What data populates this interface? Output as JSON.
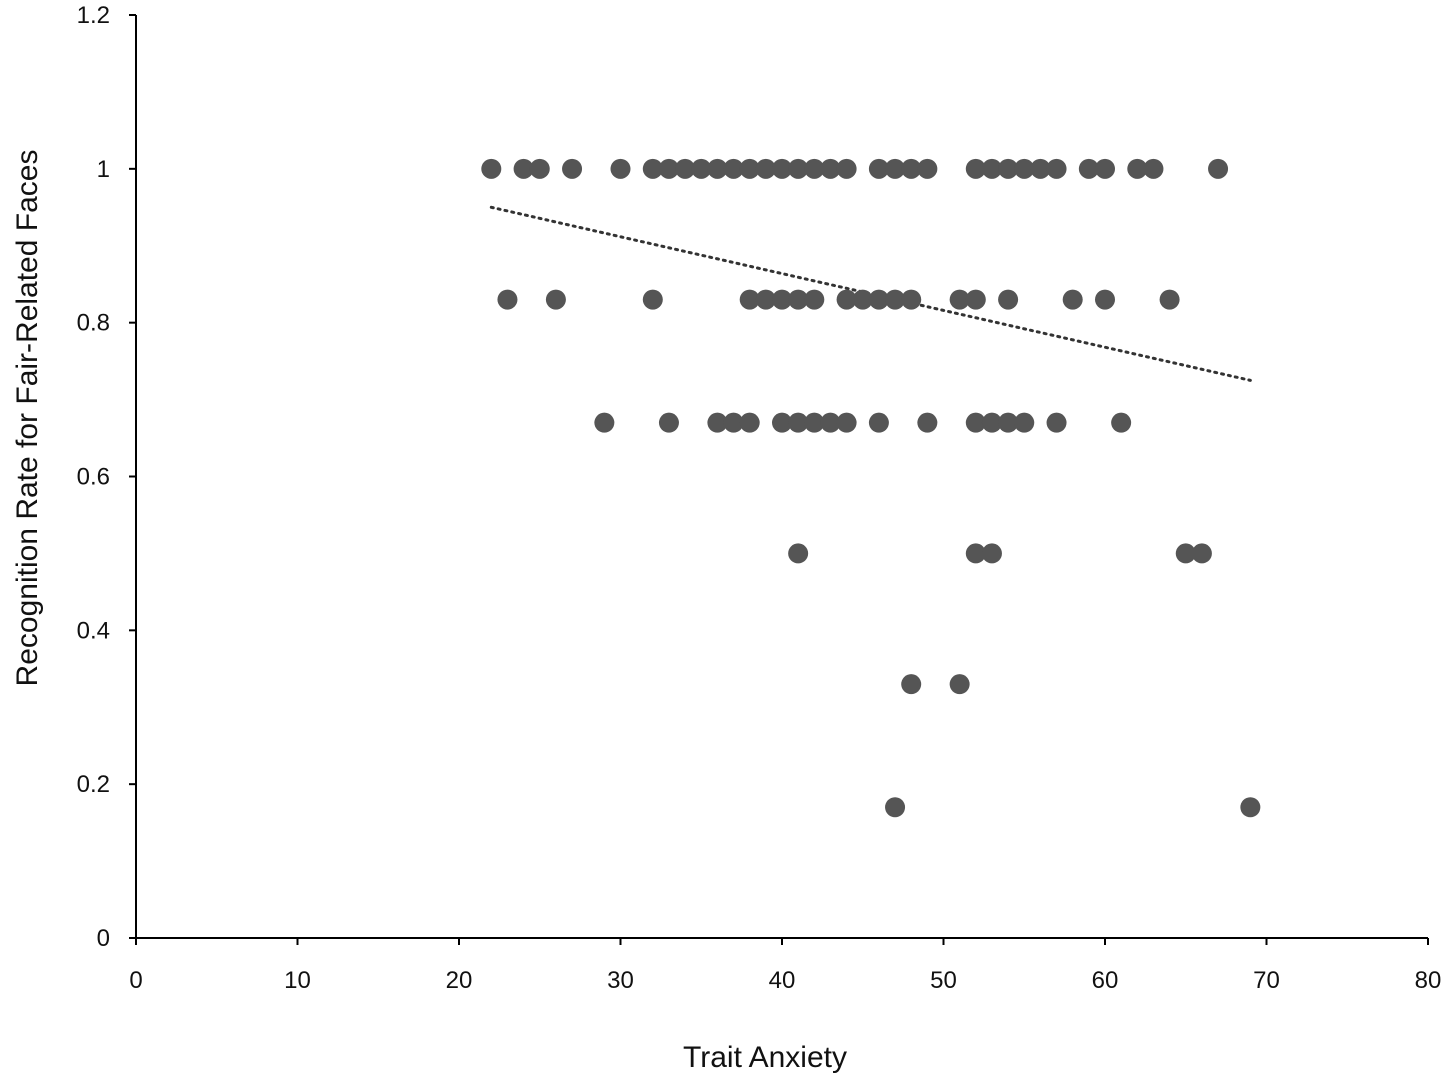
{
  "chart_data": {
    "type": "scatter",
    "title": "",
    "xlabel": "Trait Anxiety",
    "ylabel": "Recognition Rate for Fair-Related Faces",
    "xlim": [
      0,
      80
    ],
    "ylim": [
      0,
      1.2
    ],
    "x_ticks": [
      "0",
      "10",
      "20",
      "30",
      "40",
      "50",
      "60",
      "70",
      "80"
    ],
    "y_ticks": [
      "0",
      "0.2",
      "0.4",
      "0.6",
      "0.8",
      "1",
      "1.2"
    ],
    "grid": false,
    "legend": "none",
    "point_color": "#555555",
    "trendline": {
      "style": "dotted",
      "x": [
        22,
        69
      ],
      "y": [
        0.95,
        0.725
      ]
    },
    "points": [
      [
        22,
        1
      ],
      [
        24,
        1
      ],
      [
        25,
        1
      ],
      [
        27,
        1
      ],
      [
        30,
        1
      ],
      [
        32,
        1
      ],
      [
        33,
        1
      ],
      [
        34,
        1
      ],
      [
        35,
        1
      ],
      [
        36,
        1
      ],
      [
        37,
        1
      ],
      [
        38,
        1
      ],
      [
        39,
        1
      ],
      [
        40,
        1
      ],
      [
        41,
        1
      ],
      [
        42,
        1
      ],
      [
        43,
        1
      ],
      [
        44,
        1
      ],
      [
        46,
        1
      ],
      [
        47,
        1
      ],
      [
        48,
        1
      ],
      [
        49,
        1
      ],
      [
        52,
        1
      ],
      [
        53,
        1
      ],
      [
        54,
        1
      ],
      [
        55,
        1
      ],
      [
        56,
        1
      ],
      [
        57,
        1
      ],
      [
        59,
        1
      ],
      [
        60,
        1
      ],
      [
        62,
        1
      ],
      [
        63,
        1
      ],
      [
        67,
        1
      ],
      [
        23,
        0.83
      ],
      [
        26,
        0.83
      ],
      [
        32,
        0.83
      ],
      [
        38,
        0.83
      ],
      [
        39,
        0.83
      ],
      [
        40,
        0.83
      ],
      [
        41,
        0.83
      ],
      [
        42,
        0.83
      ],
      [
        44,
        0.83
      ],
      [
        45,
        0.83
      ],
      [
        46,
        0.83
      ],
      [
        47,
        0.83
      ],
      [
        48,
        0.83
      ],
      [
        51,
        0.83
      ],
      [
        52,
        0.83
      ],
      [
        54,
        0.83
      ],
      [
        58,
        0.83
      ],
      [
        60,
        0.83
      ],
      [
        64,
        0.83
      ],
      [
        29,
        0.67
      ],
      [
        33,
        0.67
      ],
      [
        36,
        0.67
      ],
      [
        37,
        0.67
      ],
      [
        38,
        0.67
      ],
      [
        40,
        0.67
      ],
      [
        41,
        0.67
      ],
      [
        42,
        0.67
      ],
      [
        43,
        0.67
      ],
      [
        44,
        0.67
      ],
      [
        46,
        0.67
      ],
      [
        49,
        0.67
      ],
      [
        52,
        0.67
      ],
      [
        53,
        0.67
      ],
      [
        54,
        0.67
      ],
      [
        55,
        0.67
      ],
      [
        57,
        0.67
      ],
      [
        61,
        0.67
      ],
      [
        41,
        0.5
      ],
      [
        52,
        0.5
      ],
      [
        53,
        0.5
      ],
      [
        65,
        0.5
      ],
      [
        66,
        0.5
      ],
      [
        48,
        0.33
      ],
      [
        51,
        0.33
      ],
      [
        47,
        0.17
      ],
      [
        69,
        0.17
      ]
    ]
  }
}
